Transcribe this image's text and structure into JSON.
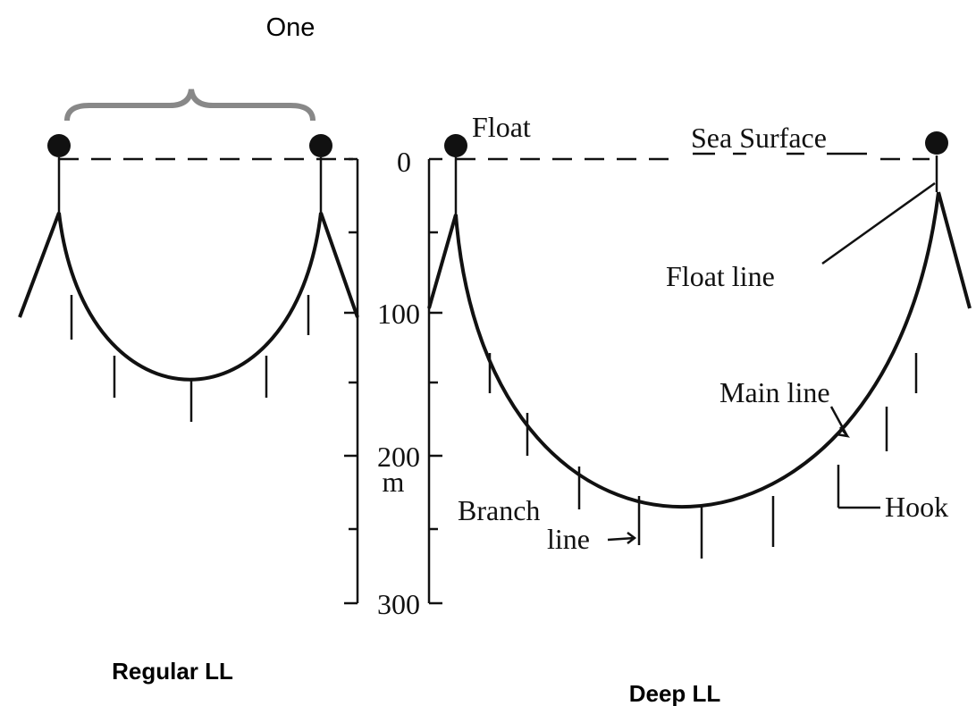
{
  "title": "One",
  "labels": {
    "float": "Float",
    "sea_surface": "Sea Surface",
    "float_line": "Float line",
    "main_line": "Main line",
    "branch_line": [
      "Branch",
      "line"
    ],
    "hook": "Hook"
  },
  "depth_scale": {
    "ticks": [
      "0",
      "100",
      "200",
      "300"
    ],
    "unit": "m"
  },
  "captions": [
    "Regular LL",
    "Deep LL"
  ]
}
